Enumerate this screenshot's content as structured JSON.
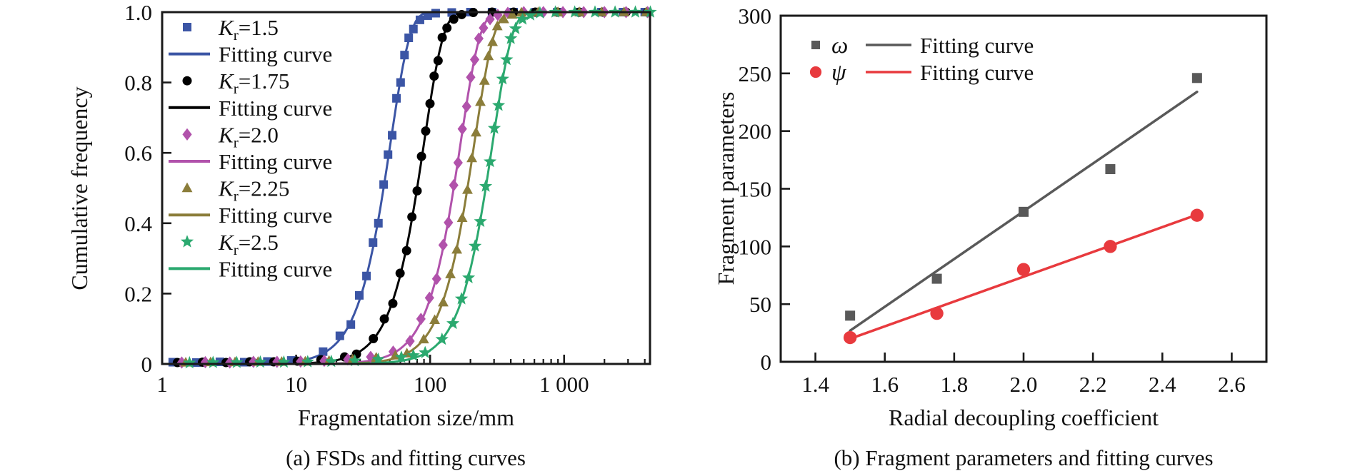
{
  "page": {
    "background": "#ffffff",
    "text_color": "#111111"
  },
  "chart_data": [
    {
      "type": "scatter+line",
      "caption": "(a) FSDs and fitting curves",
      "xlabel": "Fragmentation size/mm",
      "ylabel": "Cumulative frequency",
      "xscale": "log",
      "xlim": [
        1,
        4375
      ],
      "ylim": [
        0,
        1.0
      ],
      "xticks": [
        {
          "v": 1,
          "label": "1"
        },
        {
          "v": 10,
          "label": "10"
        },
        {
          "v": 100,
          "label": "100"
        },
        {
          "v": 1000,
          "label": "1 000"
        }
      ],
      "yticks": [
        {
          "v": 0,
          "label": "0"
        },
        {
          "v": 0.2,
          "label": "0.2"
        },
        {
          "v": 0.4,
          "label": "0.4"
        },
        {
          "v": 0.6,
          "label": "0.6"
        },
        {
          "v": 0.8,
          "label": "0.8"
        },
        {
          "v": 1.0,
          "label": "1.0"
        }
      ],
      "grid": false,
      "legend_position": "upper-left-inside",
      "series": [
        {
          "label": {
            "base": "K",
            "sub": "r",
            "rest": "=1.5"
          },
          "marker": "square",
          "color": "#3b55a5",
          "fit_label": "Fitting curve",
          "fit": {
            "model": "weibull",
            "xc": 50.8,
            "n": 3,
            "x50": 45
          },
          "points": [
            [
              1.2,
              0.005
            ],
            [
              1.8,
              0.004
            ],
            [
              2.7,
              0.006
            ],
            [
              4.1,
              0.005
            ],
            [
              6.1,
              0.007
            ],
            [
              9.2,
              0.01
            ],
            [
              15.9,
              0.035
            ],
            [
              21.2,
              0.08
            ],
            [
              25.6,
              0.112
            ],
            [
              29.6,
              0.195
            ],
            [
              33.5,
              0.25
            ],
            [
              37.5,
              0.345
            ],
            [
              41.1,
              0.4
            ],
            [
              45,
              0.51
            ],
            [
              48.5,
              0.595
            ],
            [
              52.1,
              0.65
            ],
            [
              56.1,
              0.755
            ],
            [
              60.2,
              0.8
            ],
            [
              64.4,
              0.878
            ],
            [
              69.2,
              0.927
            ],
            [
              75,
              0.952
            ],
            [
              84,
              0.978
            ],
            [
              96,
              0.99
            ],
            [
              110,
              0.997
            ],
            [
              145,
              0.999
            ],
            [
              200,
              1
            ],
            [
              290,
              1
            ],
            [
              420,
              1
            ],
            [
              610,
              1
            ],
            [
              890,
              1
            ],
            [
              1300,
              1
            ],
            [
              1900,
              1
            ],
            [
              2750,
              1
            ],
            [
              4000,
              1
            ]
          ]
        },
        {
          "label": {
            "base": "K",
            "sub": "r",
            "rest": "=1.75"
          },
          "marker": "circle",
          "color": "#000000",
          "fit_label": "Fitting curve",
          "fit": {
            "model": "weibull",
            "xc": 90.4,
            "n": 3,
            "x50": 80
          },
          "points": [
            [
              1.3,
              0.004
            ],
            [
              2,
              0.005
            ],
            [
              3,
              0.004
            ],
            [
              4.5,
              0.006
            ],
            [
              6.8,
              0.006
            ],
            [
              10.2,
              0.008
            ],
            [
              15.3,
              0.012
            ],
            [
              23,
              0.02
            ],
            [
              28.2,
              0.028
            ],
            [
              37.7,
              0.072
            ],
            [
              45.5,
              0.128
            ],
            [
              52.7,
              0.172
            ],
            [
              59.7,
              0.258
            ],
            [
              66.7,
              0.322
            ],
            [
              73.1,
              0.418
            ],
            [
              80,
              0.492
            ],
            [
              86.2,
              0.59
            ],
            [
              92.7,
              0.662
            ],
            [
              99.8,
              0.74
            ],
            [
              107.1,
              0.818
            ],
            [
              114.7,
              0.862
            ],
            [
              123.1,
              0.928
            ],
            [
              133.5,
              0.955
            ],
            [
              150,
              0.98
            ],
            [
              172,
              0.993
            ],
            [
              210,
              0.999
            ],
            [
              290,
              1
            ],
            [
              420,
              1
            ],
            [
              610,
              1
            ],
            [
              890,
              1
            ],
            [
              1300,
              1
            ],
            [
              1950,
              1
            ],
            [
              2900,
              1
            ],
            [
              4200,
              1
            ]
          ]
        },
        {
          "label": {
            "base": "K",
            "sub": "r",
            "rest": "=2.0"
          },
          "marker": "diamond",
          "color": "#b152ab",
          "fit_label": "Fitting curve",
          "fit": {
            "model": "weibull",
            "xc": 169.5,
            "n": 3,
            "x50": 150
          },
          "points": [
            [
              1.4,
              0.004
            ],
            [
              2.1,
              0.005
            ],
            [
              3.2,
              0.004
            ],
            [
              4.8,
              0.006
            ],
            [
              7.2,
              0.006
            ],
            [
              10.8,
              0.007
            ],
            [
              16.2,
              0.009
            ],
            [
              24.3,
              0.013
            ],
            [
              36,
              0.02
            ],
            [
              53,
              0.035
            ],
            [
              70.8,
              0.065
            ],
            [
              85.4,
              0.128
            ],
            [
              98.9,
              0.188
            ],
            [
              111.9,
              0.242
            ],
            [
              125,
              0.338
            ],
            [
              137,
              0.402
            ],
            [
              150,
              0.508
            ],
            [
              161.7,
              0.572
            ],
            [
              173.8,
              0.668
            ],
            [
              187.2,
              0.732
            ],
            [
              200.8,
              0.815
            ],
            [
              215,
              0.865
            ],
            [
              230.9,
              0.925
            ],
            [
              250.3,
              0.955
            ],
            [
              280,
              0.98
            ],
            [
              320,
              0.992
            ],
            [
              380,
              0.998
            ],
            [
              500,
              1
            ],
            [
              700,
              1
            ],
            [
              980,
              1
            ],
            [
              1400,
              1
            ],
            [
              2000,
              1
            ],
            [
              2900,
              1
            ],
            [
              4200,
              1
            ]
          ]
        },
        {
          "label": {
            "base": "K",
            "sub": "r",
            "rest": "=2.25"
          },
          "marker": "triangle",
          "color": "#8b7d3a",
          "fit_label": "Fitting curve",
          "fit": {
            "model": "weibull",
            "xc": 214.7,
            "n": 3,
            "x50": 190
          },
          "points": [
            [
              1.5,
              0.004
            ],
            [
              2.3,
              0.005
            ],
            [
              3.5,
              0.005
            ],
            [
              5.2,
              0.006
            ],
            [
              7.8,
              0.006
            ],
            [
              11.7,
              0.007
            ],
            [
              17.6,
              0.009
            ],
            [
              26.4,
              0.013
            ],
            [
              39.6,
              0.018
            ],
            [
              55,
              0.024
            ],
            [
              67.1,
              0.03
            ],
            [
              89.6,
              0.07
            ],
            [
              108.1,
              0.125
            ],
            [
              125.2,
              0.175
            ],
            [
              141.7,
              0.255
            ],
            [
              158.3,
              0.325
            ],
            [
              173.5,
              0.415
            ],
            [
              190,
              0.495
            ],
            [
              204.8,
              0.585
            ],
            [
              220.2,
              0.658
            ],
            [
              237.1,
              0.745
            ],
            [
              254.3,
              0.805
            ],
            [
              272.3,
              0.875
            ],
            [
              292.4,
              0.915
            ],
            [
              317.1,
              0.96
            ],
            [
              355,
              0.98
            ],
            [
              410,
              0.993
            ],
            [
              480,
              0.999
            ],
            [
              640,
              1
            ],
            [
              900,
              1
            ],
            [
              1300,
              1
            ],
            [
              1900,
              1
            ],
            [
              2800,
              1
            ],
            [
              4100,
              1
            ]
          ]
        },
        {
          "label": {
            "base": "K",
            "sub": "r",
            "rest": "=2.5"
          },
          "marker": "star",
          "color": "#2ba96f",
          "fit_label": "Fitting curve",
          "fit": {
            "model": "weibull",
            "xc": 293.8,
            "n": 3,
            "x50": 260
          },
          "points": [
            [
              1.6,
              0.003
            ],
            [
              2.4,
              0.004
            ],
            [
              3.6,
              0.004
            ],
            [
              5.4,
              0.005
            ],
            [
              8.1,
              0.005
            ],
            [
              12.2,
              0.006
            ],
            [
              18.3,
              0.007
            ],
            [
              27.4,
              0.009
            ],
            [
              41,
              0.013
            ],
            [
              61,
              0.019
            ],
            [
              75,
              0.024
            ],
            [
              91.8,
              0.032
            ],
            [
              122.6,
              0.07
            ],
            [
              148,
              0.115
            ],
            [
              171.4,
              0.185
            ],
            [
              193.9,
              0.245
            ],
            [
              216.6,
              0.335
            ],
            [
              237.4,
              0.405
            ],
            [
              260,
              0.505
            ],
            [
              280.2,
              0.575
            ],
            [
              301.3,
              0.67
            ],
            [
              324.5,
              0.735
            ],
            [
              348,
              0.81
            ],
            [
              372.6,
              0.865
            ],
            [
              400.2,
              0.925
            ],
            [
              433.9,
              0.953
            ],
            [
              490,
              0.98
            ],
            [
              560,
              0.992
            ],
            [
              660,
              0.998
            ],
            [
              860,
              1
            ],
            [
              1200,
              1
            ],
            [
              1700,
              1
            ],
            [
              2400,
              1
            ],
            [
              3400,
              1
            ],
            [
              4400,
              1
            ]
          ]
        }
      ]
    },
    {
      "type": "scatter+line",
      "caption": "(b) Fragment parameters and fitting curves",
      "xlabel": "Radial decoupling coefficient",
      "ylabel": "Fragment parameters",
      "xscale": "linear",
      "xlim": [
        1.3,
        2.7
      ],
      "ylim": [
        0,
        300
      ],
      "xticks": [
        {
          "v": 1.4,
          "label": "1.4"
        },
        {
          "v": 1.6,
          "label": "1.6"
        },
        {
          "v": 1.8,
          "label": "1.8"
        },
        {
          "v": 2.0,
          "label": "2.0"
        },
        {
          "v": 2.2,
          "label": "2.2"
        },
        {
          "v": 2.4,
          "label": "2.4"
        },
        {
          "v": 2.6,
          "label": "2.6"
        }
      ],
      "yticks": [
        {
          "v": 0,
          "label": "0"
        },
        {
          "v": 50,
          "label": "50"
        },
        {
          "v": 100,
          "label": "100"
        },
        {
          "v": 150,
          "label": "150"
        },
        {
          "v": 200,
          "label": "200"
        },
        {
          "v": 250,
          "label": "250"
        },
        {
          "v": 300,
          "label": "300"
        }
      ],
      "grid": false,
      "legend_position": "upper-left-inside",
      "series": [
        {
          "label": "ω",
          "marker": "square",
          "color": "#595959",
          "fit_label": "Fitting curve",
          "fit": {
            "model": "linear",
            "x1": 1.5,
            "y1": 27,
            "x2": 2.5,
            "y2": 234
          },
          "points": [
            [
              1.5,
              40
            ],
            [
              1.75,
              72
            ],
            [
              2.0,
              130
            ],
            [
              2.25,
              167
            ],
            [
              2.5,
              246
            ]
          ]
        },
        {
          "label": "ψ",
          "marker": "circle",
          "color": "#e83a3e",
          "fit_label": "Fitting curve",
          "fit": {
            "model": "linear",
            "x1": 1.5,
            "y1": 20,
            "x2": 2.5,
            "y2": 127.5
          },
          "points": [
            [
              1.5,
              21
            ],
            [
              1.75,
              42
            ],
            [
              2.0,
              80
            ],
            [
              2.25,
              100
            ],
            [
              2.5,
              127
            ]
          ]
        }
      ]
    }
  ]
}
